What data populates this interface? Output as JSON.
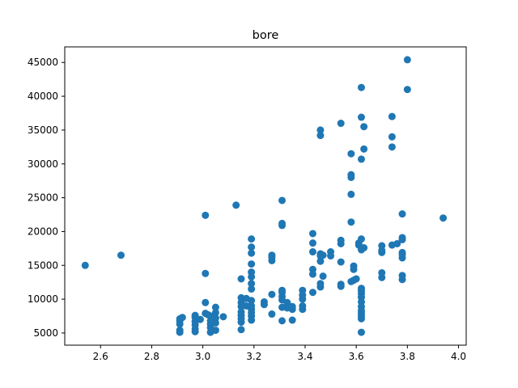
{
  "chart_data": {
    "type": "scatter",
    "title": "bore",
    "xlabel": "",
    "ylabel": "",
    "xlim": [
      2.46,
      4.03
    ],
    "ylim": [
      3200,
      47300
    ],
    "xticks": [
      2.6,
      2.8,
      3.0,
      3.2,
      3.4,
      3.6,
      3.8,
      4.0
    ],
    "xtick_labels": [
      "2.6",
      "2.8",
      "3.0",
      "3.2",
      "3.4",
      "3.6",
      "3.8",
      "4.0"
    ],
    "yticks": [
      5000,
      10000,
      15000,
      20000,
      25000,
      30000,
      35000,
      40000,
      45000
    ],
    "ytick_labels": [
      "5000",
      "10000",
      "15000",
      "20000",
      "25000",
      "30000",
      "35000",
      "40000",
      "45000"
    ],
    "grid": false,
    "color": "#1f77b4",
    "points": [
      [
        2.54,
        15000
      ],
      [
        2.68,
        16500
      ],
      [
        2.91,
        5100
      ],
      [
        2.91,
        5400
      ],
      [
        2.91,
        6300
      ],
      [
        2.91,
        6800
      ],
      [
        2.91,
        7100
      ],
      [
        2.92,
        7300
      ],
      [
        2.97,
        5200
      ],
      [
        2.97,
        5600
      ],
      [
        2.97,
        6200
      ],
      [
        2.97,
        6700
      ],
      [
        2.97,
        7300
      ],
      [
        2.97,
        7600
      ],
      [
        2.99,
        7000
      ],
      [
        3.01,
        13800
      ],
      [
        3.01,
        22400
      ],
      [
        3.01,
        9500
      ],
      [
        3.01,
        7900
      ],
      [
        3.02,
        7700
      ],
      [
        3.03,
        5100
      ],
      [
        3.03,
        5800
      ],
      [
        3.03,
        6300
      ],
      [
        3.03,
        6800
      ],
      [
        3.03,
        7500
      ],
      [
        3.05,
        5400
      ],
      [
        3.05,
        6500
      ],
      [
        3.05,
        7200
      ],
      [
        3.05,
        8000
      ],
      [
        3.05,
        8800
      ],
      [
        3.08,
        7400
      ],
      [
        3.13,
        23900
      ],
      [
        3.15,
        5500
      ],
      [
        3.15,
        6600
      ],
      [
        3.15,
        7100
      ],
      [
        3.15,
        7600
      ],
      [
        3.15,
        8100
      ],
      [
        3.15,
        8900
      ],
      [
        3.15,
        9500
      ],
      [
        3.15,
        10200
      ],
      [
        3.15,
        13000
      ],
      [
        3.17,
        9000
      ],
      [
        3.17,
        10100
      ],
      [
        3.19,
        6900
      ],
      [
        3.19,
        7500
      ],
      [
        3.19,
        8000
      ],
      [
        3.19,
        8500
      ],
      [
        3.19,
        9000
      ],
      [
        3.19,
        9800
      ],
      [
        3.19,
        11500
      ],
      [
        3.19,
        12300
      ],
      [
        3.19,
        13300
      ],
      [
        3.19,
        14000
      ],
      [
        3.19,
        15200
      ],
      [
        3.19,
        16800
      ],
      [
        3.19,
        17700
      ],
      [
        3.19,
        18900
      ],
      [
        3.24,
        9200
      ],
      [
        3.24,
        9600
      ],
      [
        3.27,
        7800
      ],
      [
        3.27,
        10700
      ],
      [
        3.27,
        15700
      ],
      [
        3.27,
        16200
      ],
      [
        3.27,
        16500
      ],
      [
        3.31,
        6800
      ],
      [
        3.31,
        8800
      ],
      [
        3.31,
        9900
      ],
      [
        3.31,
        10400
      ],
      [
        3.31,
        11000
      ],
      [
        3.31,
        11300
      ],
      [
        3.31,
        20900
      ],
      [
        3.31,
        21200
      ],
      [
        3.31,
        24600
      ],
      [
        3.33,
        8700
      ],
      [
        3.33,
        9500
      ],
      [
        3.35,
        6900
      ],
      [
        3.35,
        8500
      ],
      [
        3.35,
        8900
      ],
      [
        3.39,
        8500
      ],
      [
        3.39,
        9000
      ],
      [
        3.39,
        10000
      ],
      [
        3.39,
        10600
      ],
      [
        3.39,
        11300
      ],
      [
        3.43,
        11000
      ],
      [
        3.43,
        13700
      ],
      [
        3.43,
        14400
      ],
      [
        3.43,
        17000
      ],
      [
        3.43,
        18300
      ],
      [
        3.43,
        19700
      ],
      [
        3.46,
        11800
      ],
      [
        3.46,
        12300
      ],
      [
        3.46,
        15600
      ],
      [
        3.46,
        16400
      ],
      [
        3.46,
        16700
      ],
      [
        3.46,
        34200
      ],
      [
        3.46,
        35000
      ],
      [
        3.47,
        13400
      ],
      [
        3.47,
        16500
      ],
      [
        3.5,
        16400
      ],
      [
        3.5,
        17000
      ],
      [
        3.54,
        11900
      ],
      [
        3.54,
        12200
      ],
      [
        3.54,
        15500
      ],
      [
        3.54,
        18200
      ],
      [
        3.54,
        18700
      ],
      [
        3.54,
        36000
      ],
      [
        3.58,
        12600
      ],
      [
        3.58,
        21400
      ],
      [
        3.58,
        25500
      ],
      [
        3.58,
        28000
      ],
      [
        3.58,
        28400
      ],
      [
        3.58,
        31500
      ],
      [
        3.59,
        12800
      ],
      [
        3.59,
        14400
      ],
      [
        3.59,
        14900
      ],
      [
        3.6,
        13000
      ],
      [
        3.61,
        18000
      ],
      [
        3.61,
        18300
      ],
      [
        3.62,
        5100
      ],
      [
        3.62,
        7100
      ],
      [
        3.62,
        7500
      ],
      [
        3.62,
        7900
      ],
      [
        3.62,
        8300
      ],
      [
        3.62,
        8900
      ],
      [
        3.62,
        9600
      ],
      [
        3.62,
        10300
      ],
      [
        3.62,
        10800
      ],
      [
        3.62,
        11200
      ],
      [
        3.62,
        11600
      ],
      [
        3.62,
        17300
      ],
      [
        3.62,
        18900
      ],
      [
        3.62,
        30700
      ],
      [
        3.62,
        36900
      ],
      [
        3.62,
        41300
      ],
      [
        3.63,
        32200
      ],
      [
        3.63,
        35500
      ],
      [
        3.63,
        17600
      ],
      [
        3.7,
        13200
      ],
      [
        3.7,
        13900
      ],
      [
        3.7,
        16900
      ],
      [
        3.7,
        17200
      ],
      [
        3.7,
        17900
      ],
      [
        3.74,
        32500
      ],
      [
        3.74,
        34000
      ],
      [
        3.74,
        37000
      ],
      [
        3.74,
        18000
      ],
      [
        3.76,
        18200
      ],
      [
        3.78,
        12900
      ],
      [
        3.78,
        13500
      ],
      [
        3.78,
        16100
      ],
      [
        3.78,
        16600
      ],
      [
        3.78,
        16900
      ],
      [
        3.78,
        18800
      ],
      [
        3.78,
        19100
      ],
      [
        3.78,
        22600
      ],
      [
        3.8,
        41000
      ],
      [
        3.8,
        45400
      ],
      [
        3.94,
        22000
      ]
    ]
  }
}
